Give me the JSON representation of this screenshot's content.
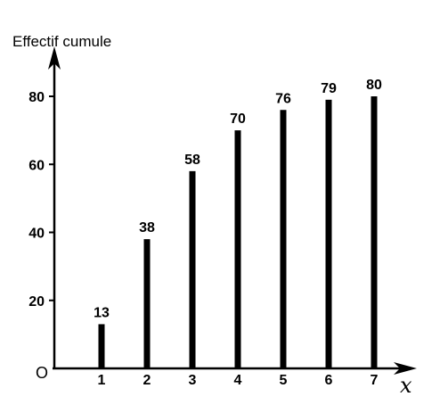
{
  "chart_data": {
    "type": "bar",
    "categories": [
      "1",
      "2",
      "3",
      "4",
      "5",
      "6",
      "7"
    ],
    "values": [
      13,
      38,
      58,
      70,
      76,
      79,
      80
    ],
    "data_labels": [
      "13",
      "38",
      "58",
      "70",
      "76",
      "79",
      "80"
    ],
    "title": "",
    "xlabel": "x",
    "ylabel": "Effectif cumule",
    "origin_label": "O",
    "yticks": [
      "20",
      "40",
      "60",
      "80"
    ],
    "ylim": [
      0,
      80
    ],
    "grid": false,
    "legend": "none",
    "colors": {
      "bar": "#000000",
      "axis": "#000000"
    }
  }
}
